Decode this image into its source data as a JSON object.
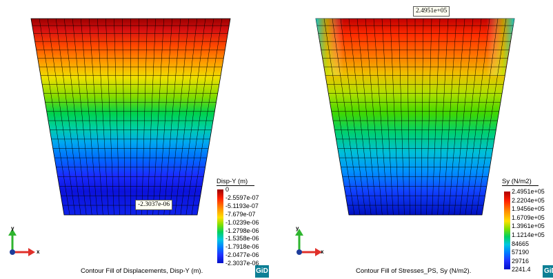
{
  "left_panel": {
    "legend_title": "Disp-Y (m)",
    "legend_ticks": [
      "0",
      "-2.5597e-07",
      "-5.1193e-07",
      "-7.679e-07",
      "-1.0239e-06",
      "-1.2798e-06",
      "-1.5358e-06",
      "-1.7918e-06",
      "-2.0477e-06",
      "-2.3037e-06"
    ],
    "callout": "-2.3037e-06",
    "caption": "Contour Fill of Displacements, Disp-Y (m).",
    "axis_y": "y",
    "axis_x": "x",
    "logo": "GiD"
  },
  "right_panel": {
    "legend_title": "Sy (N/m2)",
    "legend_ticks": [
      "2.4951e+05",
      "2.2204e+05",
      "1.9456e+05",
      "1.6709e+05",
      "1.3961e+05",
      "1.1214e+05",
      "84665",
      "57190",
      "29716",
      "2241.4"
    ],
    "callout": "2.4951e+05",
    "caption": "Contour Fill of Stresses_PS, Sy (N/m2).",
    "axis_y": "y",
    "axis_x": "x",
    "logo": "GiD"
  },
  "colors": {
    "background": "#ffffff",
    "logo_bg": "#0d7f95",
    "x_axis": "#e0302a",
    "y_axis": "#2fb52f",
    "origin": "#1d3d9a"
  }
}
